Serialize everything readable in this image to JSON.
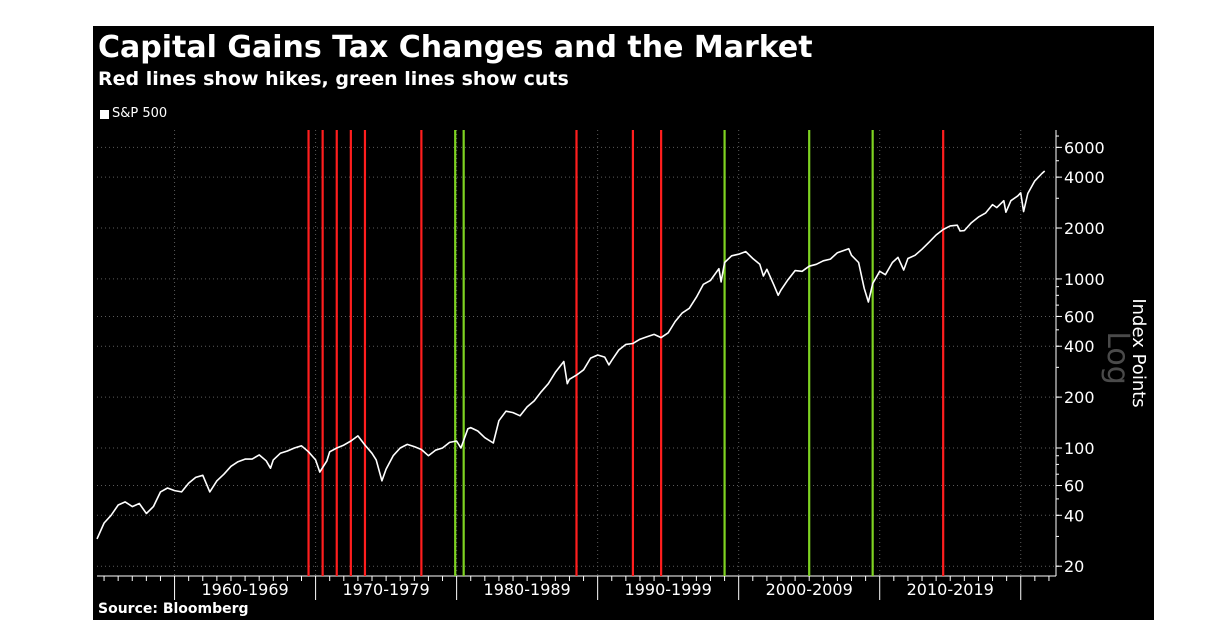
{
  "chart_data": {
    "type": "line",
    "title": "Capital Gains Tax Changes and the Market",
    "subtitle": "Red lines show hikes, green lines show cuts",
    "legend": [
      "S&P 500"
    ],
    "legend_position": "top-left",
    "ylabel": "Index Points",
    "yscale": "log",
    "yscale_label": "Log",
    "source": "Source: Bloomberg",
    "xlim": [
      1954.5,
      2022.5
    ],
    "ylim": [
      17.5,
      7600
    ],
    "grid": true,
    "yticks": [
      20,
      40,
      60,
      100,
      200,
      400,
      600,
      1000,
      2000,
      4000,
      6000
    ],
    "ytick_labels": [
      "20",
      "40",
      "60",
      "100",
      "200",
      "400",
      "600",
      "1000",
      "2000",
      "4000",
      "6000"
    ],
    "xtick_labels": [
      "1960-1969",
      "1970-1979",
      "1980-1989",
      "1990-1999",
      "2000-2009",
      "2010-2019"
    ],
    "decade_boundaries": [
      1960,
      1970,
      1980,
      1990,
      2000,
      2010,
      2020
    ],
    "colors": {
      "background": "#000000",
      "series": "#ffffff",
      "hike": "#ff1e1e",
      "cut": "#7ed321",
      "grid": "#5a5a5a",
      "scale_mark": "#4a4a4a"
    },
    "series": [
      {
        "name": "S&P 500",
        "points": [
          [
            1954.5,
            29
          ],
          [
            1955.0,
            36
          ],
          [
            1955.5,
            40
          ],
          [
            1956.0,
            46
          ],
          [
            1956.5,
            48
          ],
          [
            1957.0,
            45
          ],
          [
            1957.5,
            47
          ],
          [
            1958.0,
            41
          ],
          [
            1958.5,
            45
          ],
          [
            1959.0,
            55
          ],
          [
            1959.5,
            58
          ],
          [
            1960.0,
            56
          ],
          [
            1960.5,
            55
          ],
          [
            1961.0,
            62
          ],
          [
            1961.5,
            67
          ],
          [
            1962.0,
            69
          ],
          [
            1962.5,
            55
          ],
          [
            1963.0,
            64
          ],
          [
            1963.5,
            70
          ],
          [
            1964.0,
            78
          ],
          [
            1964.5,
            83
          ],
          [
            1965.0,
            86
          ],
          [
            1965.5,
            86
          ],
          [
            1966.0,
            91
          ],
          [
            1966.5,
            84
          ],
          [
            1966.8,
            76
          ],
          [
            1967.0,
            85
          ],
          [
            1967.5,
            93
          ],
          [
            1968.0,
            96
          ],
          [
            1968.5,
            100
          ],
          [
            1969.0,
            103
          ],
          [
            1969.5,
            95
          ],
          [
            1970.0,
            85
          ],
          [
            1970.3,
            72
          ],
          [
            1970.8,
            84
          ],
          [
            1971.0,
            95
          ],
          [
            1971.5,
            100
          ],
          [
            1972.0,
            104
          ],
          [
            1972.5,
            110
          ],
          [
            1973.0,
            118
          ],
          [
            1973.5,
            104
          ],
          [
            1974.0,
            93
          ],
          [
            1974.3,
            85
          ],
          [
            1974.7,
            64
          ],
          [
            1975.0,
            75
          ],
          [
            1975.5,
            90
          ],
          [
            1976.0,
            100
          ],
          [
            1976.5,
            105
          ],
          [
            1977.0,
            102
          ],
          [
            1977.5,
            98
          ],
          [
            1978.0,
            90
          ],
          [
            1978.5,
            97
          ],
          [
            1979.0,
            100
          ],
          [
            1979.5,
            108
          ],
          [
            1980.0,
            110
          ],
          [
            1980.3,
            100
          ],
          [
            1980.8,
            130
          ],
          [
            1981.0,
            132
          ],
          [
            1981.5,
            126
          ],
          [
            1982.0,
            115
          ],
          [
            1982.6,
            107
          ],
          [
            1983.0,
            145
          ],
          [
            1983.5,
            165
          ],
          [
            1984.0,
            162
          ],
          [
            1984.5,
            155
          ],
          [
            1985.0,
            175
          ],
          [
            1985.5,
            190
          ],
          [
            1986.0,
            215
          ],
          [
            1986.5,
            240
          ],
          [
            1987.0,
            280
          ],
          [
            1987.6,
            325
          ],
          [
            1987.85,
            240
          ],
          [
            1988.0,
            255
          ],
          [
            1988.5,
            270
          ],
          [
            1989.0,
            290
          ],
          [
            1989.5,
            340
          ],
          [
            1990.0,
            355
          ],
          [
            1990.5,
            345
          ],
          [
            1990.8,
            310
          ],
          [
            1991.0,
            330
          ],
          [
            1991.5,
            380
          ],
          [
            1992.0,
            410
          ],
          [
            1992.5,
            415
          ],
          [
            1993.0,
            440
          ],
          [
            1993.5,
            455
          ],
          [
            1994.0,
            470
          ],
          [
            1994.5,
            450
          ],
          [
            1995.0,
            480
          ],
          [
            1995.5,
            560
          ],
          [
            1996.0,
            630
          ],
          [
            1996.5,
            670
          ],
          [
            1997.0,
            780
          ],
          [
            1997.5,
            930
          ],
          [
            1998.0,
            980
          ],
          [
            1998.6,
            1150
          ],
          [
            1998.75,
            960
          ],
          [
            1999.0,
            1250
          ],
          [
            1999.5,
            1370
          ],
          [
            2000.0,
            1400
          ],
          [
            2000.5,
            1450
          ],
          [
            2001.0,
            1320
          ],
          [
            2001.5,
            1220
          ],
          [
            2001.75,
            1040
          ],
          [
            2002.0,
            1140
          ],
          [
            2002.5,
            920
          ],
          [
            2002.8,
            800
          ],
          [
            2003.0,
            860
          ],
          [
            2003.5,
            990
          ],
          [
            2004.0,
            1120
          ],
          [
            2004.5,
            1110
          ],
          [
            2005.0,
            1190
          ],
          [
            2005.5,
            1220
          ],
          [
            2006.0,
            1280
          ],
          [
            2006.5,
            1310
          ],
          [
            2007.0,
            1430
          ],
          [
            2007.8,
            1510
          ],
          [
            2008.0,
            1380
          ],
          [
            2008.5,
            1250
          ],
          [
            2008.9,
            880
          ],
          [
            2009.2,
            730
          ],
          [
            2009.5,
            940
          ],
          [
            2010.0,
            1110
          ],
          [
            2010.4,
            1060
          ],
          [
            2010.9,
            1250
          ],
          [
            2011.3,
            1340
          ],
          [
            2011.7,
            1130
          ],
          [
            2012.0,
            1320
          ],
          [
            2012.5,
            1380
          ],
          [
            2013.0,
            1500
          ],
          [
            2013.5,
            1650
          ],
          [
            2014.0,
            1820
          ],
          [
            2014.5,
            1960
          ],
          [
            2015.0,
            2060
          ],
          [
            2015.5,
            2080
          ],
          [
            2015.7,
            1920
          ],
          [
            2016.0,
            1930
          ],
          [
            2016.5,
            2150
          ],
          [
            2017.0,
            2320
          ],
          [
            2017.5,
            2450
          ],
          [
            2018.0,
            2750
          ],
          [
            2018.3,
            2640
          ],
          [
            2018.8,
            2900
          ],
          [
            2018.95,
            2480
          ],
          [
            2019.3,
            2900
          ],
          [
            2019.8,
            3100
          ],
          [
            2020.0,
            3230
          ],
          [
            2020.2,
            2500
          ],
          [
            2020.5,
            3200
          ],
          [
            2021.0,
            3800
          ],
          [
            2021.5,
            4200
          ],
          [
            2021.7,
            4350
          ]
        ]
      }
    ],
    "tax_changes": [
      {
        "year": 1969.5,
        "type": "hike"
      },
      {
        "year": 1970.5,
        "type": "hike"
      },
      {
        "year": 1971.5,
        "type": "hike"
      },
      {
        "year": 1972.5,
        "type": "hike"
      },
      {
        "year": 1973.5,
        "type": "hike"
      },
      {
        "year": 1977.5,
        "type": "hike"
      },
      {
        "year": 1979.9,
        "type": "cut"
      },
      {
        "year": 1980.5,
        "type": "cut"
      },
      {
        "year": 1988.5,
        "type": "hike"
      },
      {
        "year": 1992.5,
        "type": "hike"
      },
      {
        "year": 1994.5,
        "type": "hike"
      },
      {
        "year": 1999.0,
        "type": "cut"
      },
      {
        "year": 2005.0,
        "type": "cut"
      },
      {
        "year": 2009.5,
        "type": "cut"
      },
      {
        "year": 2014.5,
        "type": "hike"
      }
    ]
  }
}
